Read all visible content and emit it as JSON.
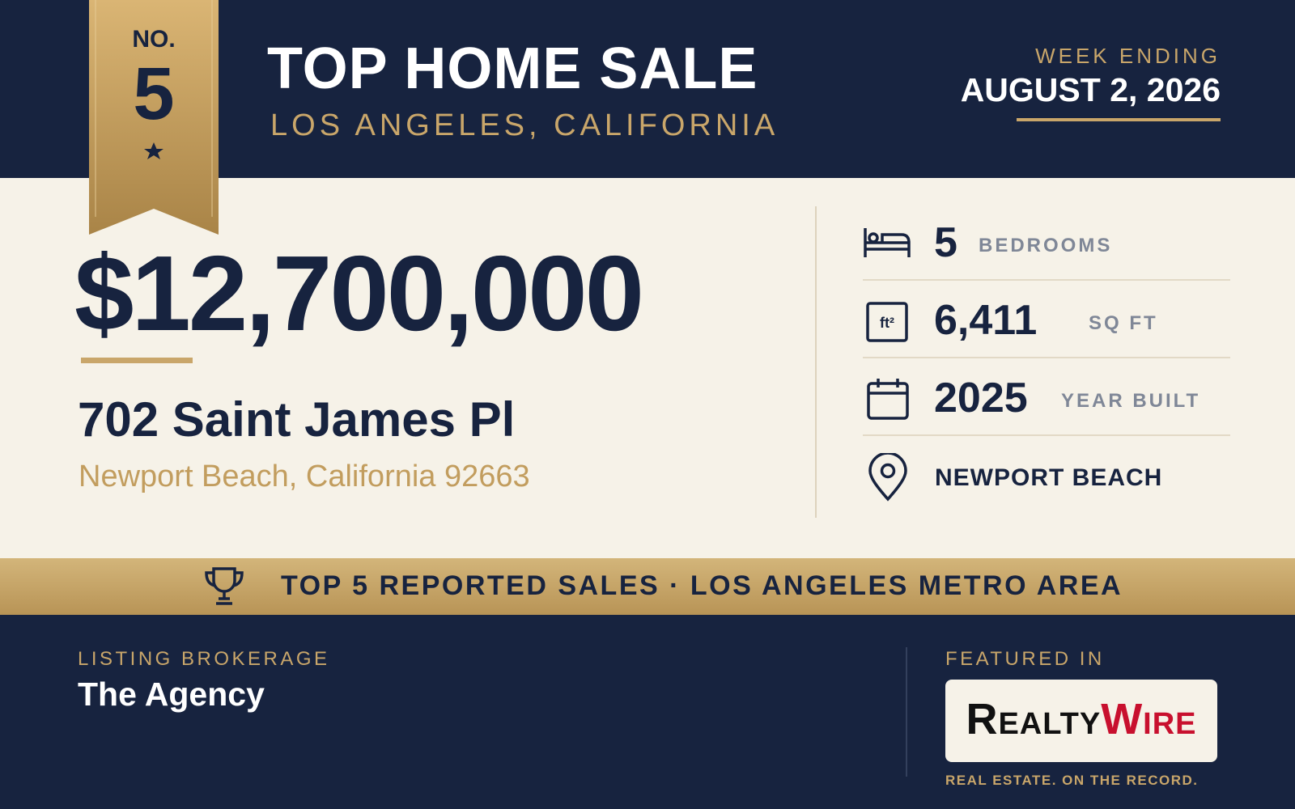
{
  "ribbon": {
    "label": "NO.",
    "number": "5"
  },
  "header": {
    "title": "TOP HOME SALE",
    "subtitle": "LOS ANGELES, CALIFORNIA",
    "week_label": "WEEK ENDING",
    "week_date": "AUGUST 2, 2026"
  },
  "price": "$12,700,000",
  "address": {
    "street": "702 Saint James Pl",
    "city": "Newport Beach, California 92663"
  },
  "stats": [
    {
      "value": "5",
      "label": "BEDROOMS"
    },
    {
      "value": "6,411",
      "label": "SQ FT"
    },
    {
      "value": "2025",
      "label": "YEAR BUILT"
    },
    {
      "value": "NEWPORT BEACH"
    }
  ],
  "banner": "TOP 5 REPORTED SALES · LOS ANGELES METRO AREA",
  "footer": {
    "brokerage_label": "LISTING BROKERAGE",
    "brokerage": "The Agency",
    "featured_label": "FEATURED IN",
    "logo": {
      "first": "Realty",
      "second": "Wire"
    },
    "tagline": "REAL ESTATE. ON THE RECORD."
  }
}
